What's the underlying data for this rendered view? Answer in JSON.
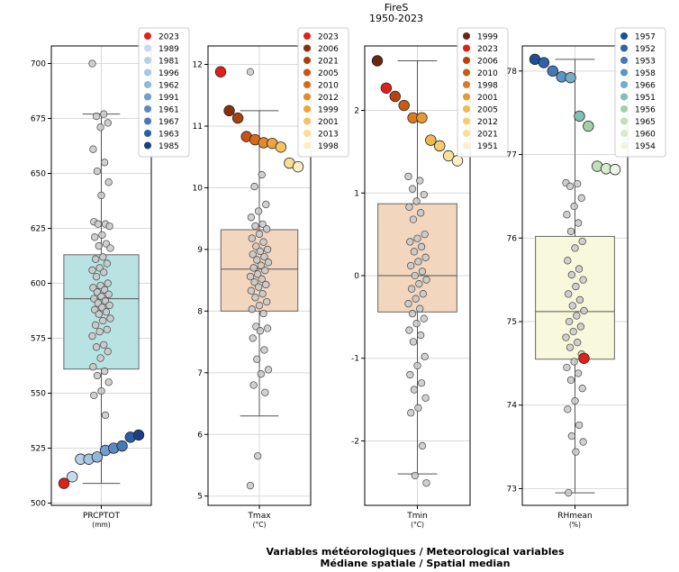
{
  "figure": {
    "title": "FireS",
    "subtitle": "1950-2023",
    "footer_line1": "Variables météorologiques / Meteorological variables",
    "footer_line2": "Médiane spatiale / Spatial median"
  },
  "chart_data": [
    {
      "type": "box",
      "xlabel": "PRCPTOT",
      "unit": "(mm)",
      "ylim": [
        499,
        708
      ],
      "yticks": [
        500,
        525,
        550,
        575,
        600,
        625,
        650,
        675,
        700
      ],
      "grid": true,
      "legend_position": "top-right",
      "box_color": "#b9e3e3",
      "box": {
        "q1": 561,
        "median": 593,
        "q3": 613,
        "whisker_low": 509,
        "whisker_high": 677
      },
      "highlight": [
        {
          "year": "2023",
          "value": 509,
          "color": "#e0201a"
        },
        {
          "year": "1989",
          "value": 512,
          "color": "#c9daf0"
        },
        {
          "year": "1981",
          "value": 520,
          "color": "#b7cfe9"
        },
        {
          "year": "1996",
          "value": 520,
          "color": "#a8c6e3"
        },
        {
          "year": "1962",
          "value": 521,
          "color": "#93b8dc"
        },
        {
          "year": "1991",
          "value": 524,
          "color": "#6f9fd0"
        },
        {
          "year": "1961",
          "value": 525,
          "color": "#5a8ac4"
        },
        {
          "year": "1967",
          "value": 526,
          "color": "#4878b8"
        },
        {
          "year": "1963",
          "value": 530,
          "color": "#2c5ea6"
        },
        {
          "year": "1985",
          "value": 531,
          "color": "#1b3f87"
        }
      ],
      "points": [
        700,
        677,
        676,
        673,
        671,
        661,
        655,
        651,
        646,
        640,
        628,
        627,
        627,
        626,
        622,
        621,
        618,
        617,
        616,
        612,
        611,
        609,
        607,
        606,
        605,
        603,
        600,
        599,
        598,
        597,
        596,
        595,
        594,
        593,
        592,
        591,
        590,
        589,
        588,
        587,
        586,
        584,
        583,
        581,
        579,
        578,
        576,
        572,
        571,
        569,
        566,
        562,
        560,
        558,
        555,
        551,
        549,
        540
      ]
    },
    {
      "type": "box",
      "xlabel": "Tmax",
      "unit": "(°C)",
      "ylim": [
        4.85,
        12.3
      ],
      "yticks": [
        5,
        6,
        7,
        8,
        9,
        10,
        11,
        12
      ],
      "grid": true,
      "legend_position": "top-right",
      "box_color": "#f2d6be",
      "box": {
        "q1": 8.0,
        "median": 8.68,
        "q3": 9.32,
        "whisker_low": 6.3,
        "whisker_high": 11.25
      },
      "highlight": [
        {
          "year": "2023",
          "value": 11.88,
          "color": "#e0201a"
        },
        {
          "year": "2006",
          "value": 11.25,
          "color": "#8b2d0f"
        },
        {
          "year": "2021",
          "value": 11.13,
          "color": "#a8410f"
        },
        {
          "year": "2005",
          "value": 10.83,
          "color": "#c95412"
        },
        {
          "year": "2010",
          "value": 10.78,
          "color": "#da6b16"
        },
        {
          "year": "2012",
          "value": 10.73,
          "color": "#e58a2a"
        },
        {
          "year": "1999",
          "value": 10.72,
          "color": "#eea43d"
        },
        {
          "year": "2001",
          "value": 10.66,
          "color": "#f4c461"
        },
        {
          "year": "2013",
          "value": 10.4,
          "color": "#f9dd93"
        },
        {
          "year": "1998",
          "value": 10.34,
          "color": "#fcefc4"
        }
      ],
      "points": [
        11.88,
        10.21,
        10.02,
        9.73,
        9.62,
        9.52,
        9.41,
        9.38,
        9.33,
        9.25,
        9.18,
        9.12,
        9.05,
        9.0,
        8.97,
        8.92,
        8.88,
        8.83,
        8.79,
        8.74,
        8.7,
        8.66,
        8.6,
        8.56,
        8.52,
        8.47,
        8.43,
        8.39,
        8.33,
        8.28,
        8.22,
        8.15,
        8.09,
        8.03,
        7.96,
        7.75,
        7.72,
        7.68,
        7.56,
        7.37,
        7.22,
        7.05,
        6.98,
        6.8,
        6.68,
        5.65,
        5.17
      ]
    },
    {
      "type": "box",
      "xlabel": "Tmin",
      "unit": "(°C)",
      "ylim": [
        -2.78,
        2.78
      ],
      "yticks": [
        -2,
        -1,
        0,
        1,
        2
      ],
      "grid": true,
      "legend_position": "top-right",
      "box_color": "#f2d6be",
      "box": {
        "q1": -0.44,
        "median": 0.0,
        "q3": 0.87,
        "whisker_low": -2.4,
        "whisker_high": 2.6
      },
      "highlight": [
        {
          "year": "1999",
          "value": 2.6,
          "color": "#6b2610"
        },
        {
          "year": "2023",
          "value": 2.27,
          "color": "#e0201a"
        },
        {
          "year": "2006",
          "value": 2.17,
          "color": "#b8430f"
        },
        {
          "year": "2010",
          "value": 2.06,
          "color": "#ca5b14"
        },
        {
          "year": "1998",
          "value": 1.91,
          "color": "#dc7a1e"
        },
        {
          "year": "2001",
          "value": 1.91,
          "color": "#e69a32"
        },
        {
          "year": "2005",
          "value": 1.64,
          "color": "#f0b84d"
        },
        {
          "year": "2012",
          "value": 1.57,
          "color": "#f5cd6c"
        },
        {
          "year": "2021",
          "value": 1.45,
          "color": "#f9e09a"
        },
        {
          "year": "1951",
          "value": 1.39,
          "color": "#fcf0c6"
        }
      ],
      "points": [
        1.2,
        1.15,
        1.05,
        0.98,
        0.9,
        0.83,
        0.76,
        0.68,
        0.5,
        0.45,
        0.41,
        0.35,
        0.29,
        0.22,
        0.17,
        0.12,
        0.05,
        0.0,
        -0.05,
        -0.1,
        -0.16,
        -0.22,
        -0.28,
        -0.34,
        -0.4,
        -0.46,
        -0.52,
        -0.58,
        -0.66,
        -0.72,
        -0.8,
        -0.98,
        -1.09,
        -1.2,
        -1.3,
        -1.38,
        -1.48,
        -1.6,
        -1.66,
        -2.06,
        -2.42,
        -2.51
      ]
    },
    {
      "type": "box",
      "xlabel": "RHmean",
      "unit": "(%)",
      "ylim": [
        72.8,
        78.3
      ],
      "yticks": [
        73,
        74,
        75,
        76,
        77,
        78
      ],
      "grid": true,
      "legend_position": "top-right",
      "box_color": "#f8f8dc",
      "box": {
        "q1": 74.55,
        "median": 75.12,
        "q3": 76.02,
        "whisker_low": 72.95,
        "whisker_high": 78.14
      },
      "highlight": [
        {
          "year": "1957",
          "value": 78.14,
          "color": "#1f4e96"
        },
        {
          "year": "1952",
          "value": 78.1,
          "color": "#2f63a8"
        },
        {
          "year": "1953",
          "value": 78.0,
          "color": "#427ab8"
        },
        {
          "year": "1958",
          "value": 77.93,
          "color": "#5a96c4"
        },
        {
          "year": "1966",
          "value": 77.92,
          "color": "#72adc9"
        },
        {
          "year": "1951",
          "value": 77.46,
          "color": "#82bfb4"
        },
        {
          "year": "1956",
          "value": 77.34,
          "color": "#a0d1a6"
        },
        {
          "year": "1965",
          "value": 76.86,
          "color": "#bfe0b8"
        },
        {
          "year": "1960",
          "value": 76.83,
          "color": "#d8eccd"
        },
        {
          "year": "1954",
          "value": 76.82,
          "color": "#ecf5e3"
        }
      ],
      "red_point": {
        "year": "2023",
        "value": 74.56,
        "color": "#e0201a"
      },
      "points": [
        76.66,
        76.65,
        76.62,
        76.48,
        76.38,
        76.28,
        76.18,
        76.08,
        75.96,
        75.88,
        75.73,
        75.63,
        75.56,
        75.5,
        75.42,
        75.33,
        75.26,
        75.19,
        75.13,
        75.07,
        75.0,
        74.94,
        74.88,
        74.81,
        74.75,
        74.69,
        74.61,
        74.52,
        74.45,
        74.38,
        74.3,
        74.2,
        74.05,
        73.95,
        73.76,
        73.63,
        73.56,
        73.44,
        72.95
      ]
    }
  ]
}
